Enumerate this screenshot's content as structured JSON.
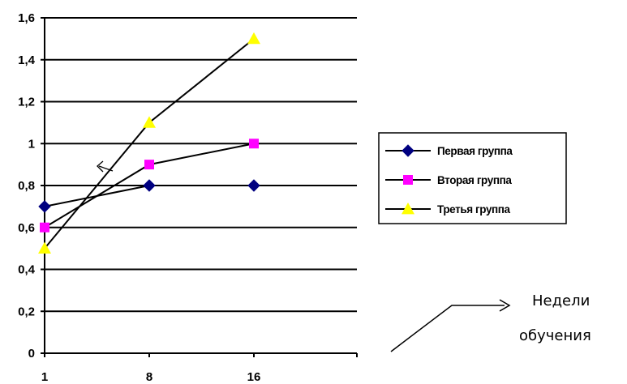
{
  "chart_data": {
    "type": "line",
    "categories": [
      "1",
      "8",
      "16"
    ],
    "series": [
      {
        "name": "Первая группа",
        "values": [
          0.7,
          0.8,
          0.8
        ],
        "marker": "diamond",
        "color": "#000080"
      },
      {
        "name": "Вторая группа",
        "values": [
          0.6,
          0.9,
          1.0
        ],
        "marker": "square",
        "color": "#FF00FF"
      },
      {
        "name": "Третья группа",
        "values": [
          0.5,
          1.1,
          1.5
        ],
        "marker": "triangle",
        "color": "#FFFF00"
      }
    ],
    "ylim": [
      0,
      1.6
    ],
    "y_ticks": [
      "0",
      "0,2",
      "0,4",
      "0,6",
      "0,8",
      "1",
      "1,2",
      "1,4",
      "1,6"
    ],
    "grid": true,
    "legend_position": "right",
    "line_color": "#000000",
    "title": "",
    "xlabel": "",
    "ylabel": "",
    "annotation": {
      "line1": "Недели",
      "line2": "обучения"
    }
  }
}
